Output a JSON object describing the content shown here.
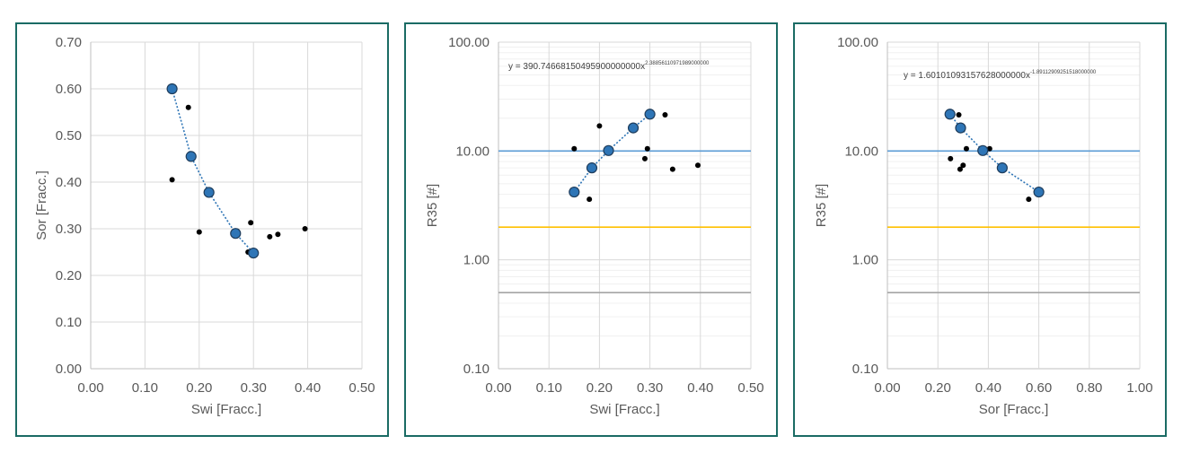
{
  "colors": {
    "border": "#1a6b64",
    "grid": "#d9d9d9",
    "axis": "#bfbfbf",
    "text": "#595959",
    "marker_blue": "#2e75b6",
    "marker_outline": "#1f3d5c",
    "trend": "#2e75b6",
    "point_black": "#000000",
    "ref_blue": "#5b9bd5",
    "ref_orange": "#ffc000",
    "ref_gray": "#a5a5a5"
  },
  "chart_data": [
    {
      "type": "scatter",
      "xlabel": "Swi [Fracc.]",
      "ylabel": "Sor [Fracc.]",
      "xlim": [
        0,
        0.5
      ],
      "ylim": [
        0,
        0.7
      ],
      "x_ticks": [
        "0.00",
        "0.10",
        "0.20",
        "0.30",
        "0.40",
        "0.50"
      ],
      "y_ticks": [
        "0.00",
        "0.10",
        "0.20",
        "0.30",
        "0.40",
        "0.50",
        "0.60",
        "0.70"
      ],
      "grid": true,
      "series": [
        {
          "marker": "small-black-dot",
          "x": [
            0.15,
            0.18,
            0.2,
            0.27,
            0.29,
            0.295,
            0.33,
            0.345,
            0.395
          ],
          "y": [
            0.405,
            0.56,
            0.293,
            0.295,
            0.25,
            0.313,
            0.283,
            0.288,
            0.3
          ]
        },
        {
          "marker": "large-blue-circle",
          "trend": "dotted",
          "x": [
            0.15,
            0.185,
            0.218,
            0.267,
            0.3
          ],
          "y": [
            0.6,
            0.455,
            0.378,
            0.29,
            0.248
          ]
        }
      ]
    },
    {
      "type": "scatter",
      "xlabel": "Swi [Fracc.]",
      "ylabel": "R35 [#]",
      "xlim": [
        0,
        0.5
      ],
      "ylim": [
        0.1,
        100
      ],
      "yscale": "log",
      "x_ticks": [
        "0.00",
        "0.10",
        "0.20",
        "0.30",
        "0.40",
        "0.50"
      ],
      "y_ticks": [
        "0.10",
        "1.00",
        "10.00",
        "100.00"
      ],
      "grid": true,
      "equation": {
        "base": "y = 390.74668150495900000000x",
        "exponent": "2.38856110971989000000"
      },
      "reference_lines": [
        10,
        2,
        0.5
      ],
      "series": [
        {
          "marker": "small-black-dot",
          "x": [
            0.15,
            0.18,
            0.2,
            0.27,
            0.29,
            0.295,
            0.33,
            0.345,
            0.395
          ],
          "y": [
            10.5,
            3.6,
            17.0,
            16.5,
            8.5,
            10.5,
            21.5,
            6.8,
            7.4
          ]
        },
        {
          "marker": "large-blue-circle",
          "trend": "dotted",
          "x": [
            0.15,
            0.185,
            0.218,
            0.267,
            0.3
          ],
          "y": [
            4.2,
            7.0,
            10.1,
            16.3,
            21.8
          ]
        }
      ]
    },
    {
      "type": "scatter",
      "xlabel": "Sor [Fracc.]",
      "ylabel": "R35 [#]",
      "xlim": [
        0,
        1
      ],
      "ylim": [
        0.1,
        100
      ],
      "yscale": "log",
      "x_ticks": [
        "0.00",
        "0.20",
        "0.40",
        "0.60",
        "0.80",
        "1.00"
      ],
      "y_ticks": [
        "0.10",
        "1.00",
        "10.00",
        "100.00"
      ],
      "grid": true,
      "equation": {
        "base": "y = 1.60101093157628000000x",
        "exponent": "-1.89112909251518000000"
      },
      "reference_lines": [
        10,
        2,
        0.5
      ],
      "series": [
        {
          "marker": "small-black-dot",
          "x": [
            0.25,
            0.283,
            0.288,
            0.295,
            0.3,
            0.313,
            0.405,
            0.56
          ],
          "y": [
            8.5,
            21.5,
            6.8,
            16.5,
            7.4,
            10.5,
            10.5,
            3.6
          ]
        },
        {
          "marker": "large-blue-circle",
          "trend": "dotted",
          "x": [
            0.248,
            0.29,
            0.378,
            0.455,
            0.6
          ],
          "y": [
            21.8,
            16.3,
            10.1,
            7.0,
            4.2
          ]
        }
      ]
    }
  ]
}
